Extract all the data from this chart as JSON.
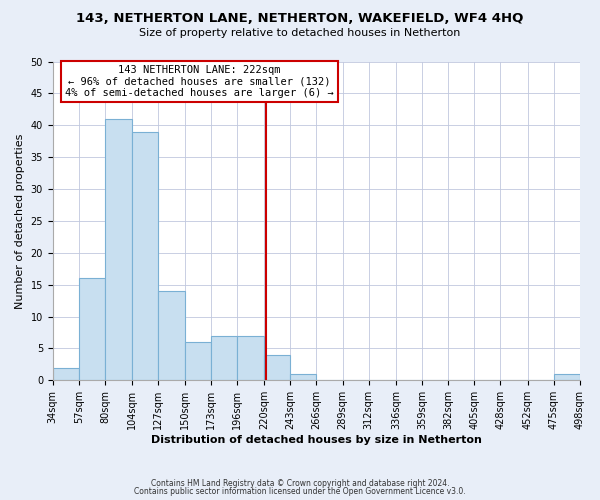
{
  "title": "143, NETHERTON LANE, NETHERTON, WAKEFIELD, WF4 4HQ",
  "subtitle": "Size of property relative to detached houses in Netherton",
  "xlabel": "Distribution of detached houses by size in Netherton",
  "ylabel": "Number of detached properties",
  "footnote1": "Contains HM Land Registry data © Crown copyright and database right 2024.",
  "footnote2": "Contains public sector information licensed under the Open Government Licence v3.0.",
  "bin_edges": [
    34,
    57,
    80,
    104,
    127,
    150,
    173,
    196,
    220,
    243,
    266,
    289,
    312,
    336,
    359,
    382,
    405,
    428,
    452,
    475,
    498
  ],
  "bin_labels": [
    "34sqm",
    "57sqm",
    "80sqm",
    "104sqm",
    "127sqm",
    "150sqm",
    "173sqm",
    "196sqm",
    "220sqm",
    "243sqm",
    "266sqm",
    "289sqm",
    "312sqm",
    "336sqm",
    "359sqm",
    "382sqm",
    "405sqm",
    "428sqm",
    "452sqm",
    "475sqm",
    "498sqm"
  ],
  "counts": [
    2,
    16,
    41,
    39,
    14,
    6,
    7,
    7,
    4,
    1,
    0,
    0,
    0,
    0,
    0,
    0,
    0,
    0,
    0,
    1
  ],
  "bar_color": "#c8dff0",
  "bar_edge_color": "#7ab0d4",
  "vline_x": 222,
  "vline_color": "#cc0000",
  "annotation_title": "143 NETHERTON LANE: 222sqm",
  "annotation_line1": "← 96% of detached houses are smaller (132)",
  "annotation_line2": "4% of semi-detached houses are larger (6) →",
  "annotation_box_color": "#cc0000",
  "annotation_box_fill": "#ffffff",
  "ylim": [
    0,
    50
  ],
  "yticks": [
    0,
    5,
    10,
    15,
    20,
    25,
    30,
    35,
    40,
    45,
    50
  ],
  "background_color": "#e8eef8",
  "plot_background": "#ffffff",
  "title_fontsize": 9.5,
  "subtitle_fontsize": 8.0,
  "annotation_fontsize": 7.5,
  "tick_fontsize": 7.0,
  "label_fontsize": 8.0,
  "footnote_fontsize": 5.5
}
